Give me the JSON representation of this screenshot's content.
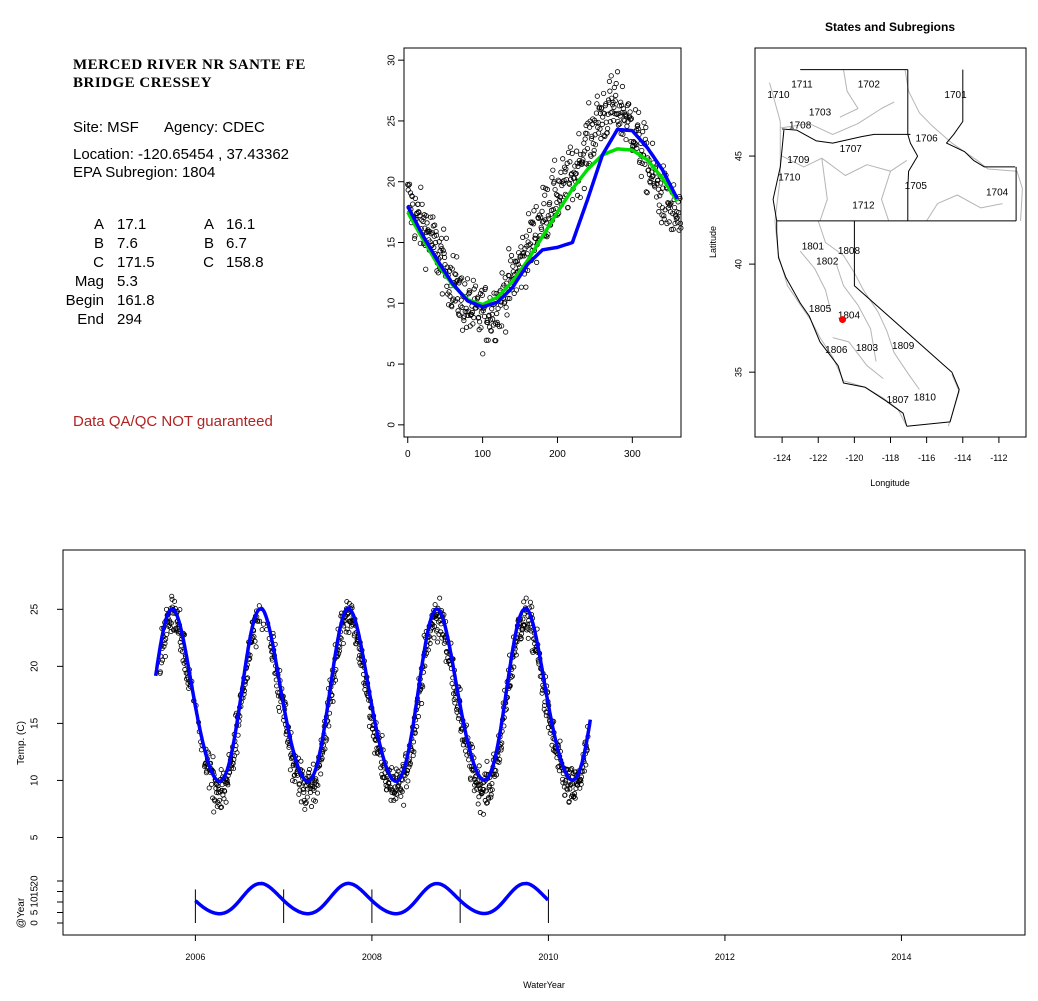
{
  "info": {
    "station_name": "MERCED RIVER NR SANTE FE\nBRIDGE CRESSEY",
    "site_label": "Site: MSF",
    "agency_label": "Agency: CDEC",
    "location": "Location: -120.65454 , 37.43362",
    "epa_subregion": "EPA Subregion: 1804",
    "params_left": [
      {
        "label": "A",
        "value": "17.1"
      },
      {
        "label": "B",
        "value": "7.6"
      },
      {
        "label": "C",
        "value": "171.5"
      },
      {
        "label": "Mag",
        "value": "5.3"
      },
      {
        "label": "Begin",
        "value": "161.8"
      },
      {
        "label": "End",
        "value": "294"
      }
    ],
    "params_right": [
      {
        "label": "A",
        "value": "16.1"
      },
      {
        "label": "B",
        "value": "6.7"
      },
      {
        "label": "C",
        "value": "158.8"
      }
    ],
    "qaqc_note": "Data QA/QC NOT guaranteed",
    "qaqc_color": "#b22222"
  },
  "chart_data": [
    {
      "type": "scatter",
      "id": "day-of-year",
      "title": "",
      "xlabel": "",
      "ylabel": "",
      "xlim": [
        -5,
        365
      ],
      "ylim": [
        -1,
        31
      ],
      "xticks": [
        0,
        100,
        200,
        300
      ],
      "yticks": [
        0,
        5,
        10,
        15,
        20,
        25,
        30
      ],
      "observations": {
        "x": [
          0,
          5,
          10,
          20,
          30,
          40,
          50,
          60,
          70,
          80,
          90,
          100,
          110,
          120,
          130,
          140,
          150,
          160,
          170,
          180,
          190,
          200,
          210,
          220,
          230,
          240,
          250,
          260,
          270,
          280,
          290,
          300,
          310,
          320,
          330,
          340,
          350,
          360
        ],
        "y": [
          18.5,
          18.0,
          17.2,
          16.5,
          15.5,
          14.2,
          13.0,
          11.8,
          10.5,
          9.6,
          9.2,
          9.0,
          9.2,
          9.8,
          10.8,
          12.0,
          13.2,
          14.5,
          15.8,
          17.0,
          18.2,
          19.0,
          19.5,
          20.5,
          21.8,
          23.0,
          24.5,
          25.5,
          26.0,
          26.2,
          25.5,
          24.5,
          23.0,
          21.5,
          20.0,
          18.8,
          17.8,
          17.0
        ],
        "spread": 3.0
      },
      "series": [
        {
          "color": "#0000ff",
          "x": [
            0,
            20,
            40,
            60,
            80,
            100,
            120,
            140,
            160,
            180,
            200,
            220,
            240,
            260,
            280,
            300,
            320,
            340,
            360
          ],
          "y": [
            18.0,
            15.6,
            13.5,
            11.6,
            10.2,
            9.7,
            10.1,
            11.3,
            13.2,
            14.4,
            14.6,
            15.0,
            18.5,
            22.2,
            24.3,
            24.2,
            22.8,
            21.0,
            18.6
          ]
        },
        {
          "color": "#00dd00",
          "x": [
            0,
            20,
            40,
            60,
            80,
            100,
            120,
            140,
            160,
            180,
            200,
            220,
            240,
            260,
            280,
            300,
            320,
            340,
            360
          ],
          "y": [
            17.5,
            15.3,
            13.2,
            11.5,
            10.3,
            9.9,
            10.5,
            11.8,
            13.5,
            15.5,
            17.5,
            19.4,
            21.0,
            22.2,
            22.7,
            22.6,
            21.8,
            20.3,
            18.4
          ]
        }
      ]
    },
    {
      "type": "map",
      "id": "states-subregions",
      "title": "States and Subregions",
      "xlabel": "Longitude",
      "ylabel": "Latitude",
      "xlim": [
        -125.5,
        -110.5
      ],
      "ylim": [
        32,
        50
      ],
      "xticks": [
        -124,
        -122,
        -120,
        -118,
        -116,
        -114,
        -112
      ],
      "yticks": [
        35,
        40,
        45
      ],
      "regions": [
        {
          "label": "1711",
          "lon": -122.9,
          "lat": 48.3
        },
        {
          "label": "1710",
          "lon": -124.2,
          "lat": 47.8
        },
        {
          "label": "1702",
          "lon": -119.2,
          "lat": 48.3
        },
        {
          "label": "1701",
          "lon": -114.4,
          "lat": 47.8
        },
        {
          "label": "1703",
          "lon": -121.9,
          "lat": 47.0
        },
        {
          "label": "1708",
          "lon": -123.0,
          "lat": 46.4
        },
        {
          "label": "1706",
          "lon": -116.0,
          "lat": 45.8
        },
        {
          "label": "1707",
          "lon": -120.2,
          "lat": 45.3
        },
        {
          "label": "1709",
          "lon": -123.1,
          "lat": 44.8
        },
        {
          "label": "1710",
          "lon": -123.6,
          "lat": 44.0
        },
        {
          "label": "1705",
          "lon": -116.6,
          "lat": 43.6
        },
        {
          "label": "1704",
          "lon": -112.1,
          "lat": 43.3
        },
        {
          "label": "1712",
          "lon": -119.5,
          "lat": 42.7
        },
        {
          "label": "1801",
          "lon": -122.3,
          "lat": 40.8
        },
        {
          "label": "1808",
          "lon": -120.3,
          "lat": 40.6
        },
        {
          "label": "1802",
          "lon": -121.5,
          "lat": 40.1
        },
        {
          "label": "1805",
          "lon": -121.9,
          "lat": 37.9
        },
        {
          "label": "1804",
          "lon": -120.3,
          "lat": 37.6
        },
        {
          "label": "1806",
          "lon": -121.0,
          "lat": 36.0
        },
        {
          "label": "1803",
          "lon": -119.3,
          "lat": 36.1
        },
        {
          "label": "1809",
          "lon": -117.3,
          "lat": 36.2
        },
        {
          "label": "1807",
          "lon": -117.6,
          "lat": 33.7
        },
        {
          "label": "1810",
          "lon": -116.1,
          "lat": 33.8
        }
      ],
      "site_point": {
        "lon": -120.65454,
        "lat": 37.43362,
        "color": "#ff0000"
      }
    },
    {
      "type": "scatter",
      "id": "time-series",
      "title": "",
      "xlabel": "WaterYear",
      "ylabel": "Temp. (C)",
      "ylabel_lower": "@Year",
      "xlim": [
        2004.5,
        2015.4
      ],
      "ylim": [
        3.2,
        30.2
      ],
      "xticks": [
        2006,
        2008,
        2010,
        2012,
        2014
      ],
      "yticks": [
        5,
        10,
        15,
        20,
        25
      ],
      "lower_yticks": [
        0,
        5,
        10,
        15,
        20
      ],
      "lower_ylim": [
        0,
        20
      ],
      "observations": {
        "x_start": 2005.6,
        "x_end": 2010.45,
        "dropouts": [
          [
            2005.95,
            2006.1
          ],
          [
            2006.7,
            2006.85
          ]
        ],
        "spread": 2.6
      },
      "series": [
        {
          "color": "#0000ff",
          "phase_start": 2005.95,
          "x_start": 2005.55,
          "x_end": 2010.48,
          "peaks": [
            24.5,
            24.6,
            24.5,
            24.5,
            24.6
          ],
          "troughs": [
            9.5,
            9.5,
            9.5,
            9.6,
            9.6
          ]
        }
      ],
      "year_markers": [
        2006,
        2007,
        2008,
        2009,
        2010
      ],
      "lower_series": {
        "color": "#0000ff",
        "x_start": 2006.0,
        "x_end": 2010.0
      }
    }
  ]
}
